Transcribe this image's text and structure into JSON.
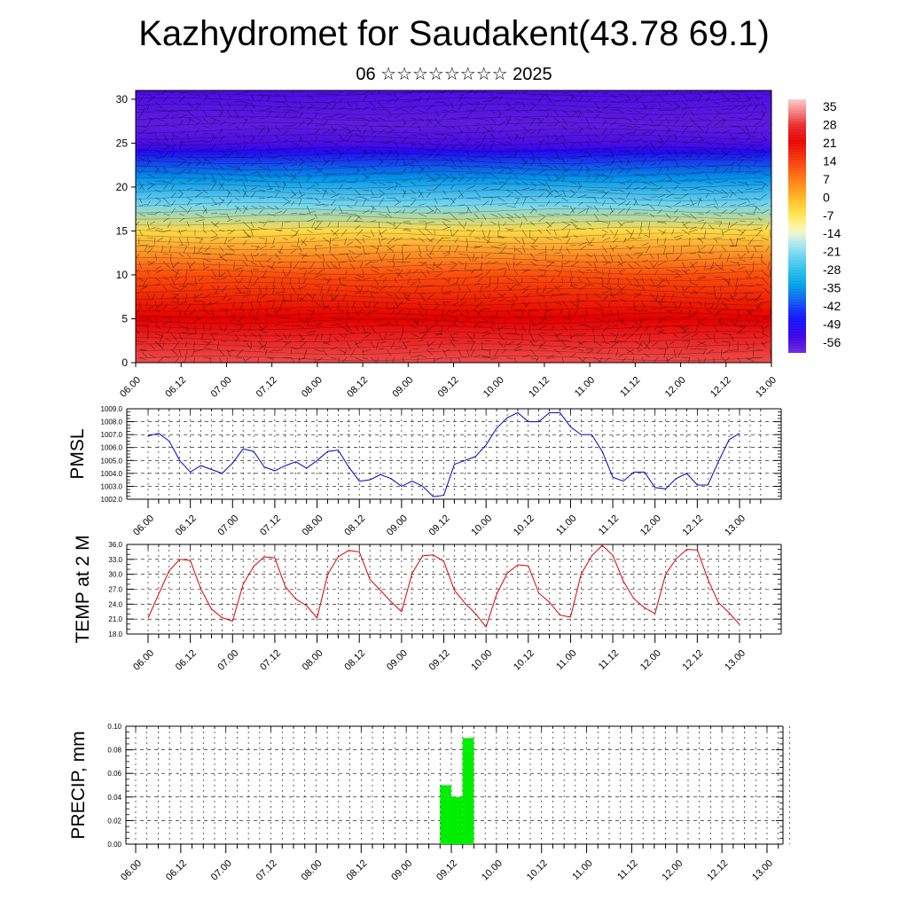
{
  "title": "Kazhydromet for Saudakent(43.78 69.1)",
  "subtitle": "06 ☆☆☆☆☆☆☆☆ 2025",
  "x_tick_labels": [
    "06.00",
    "06.12",
    "07.00",
    "07.12",
    "08.00",
    "08.12",
    "09.00",
    "09.12",
    "10.00",
    "10.12",
    "11.00",
    "11.12",
    "12.00",
    "12.12",
    "13.00"
  ],
  "colors": {
    "pmsl_line": "#0000cc",
    "temp_line": "#dd0000",
    "precip_bar": "#00ee00"
  },
  "chart_data": [
    {
      "type": "heatmap",
      "title": "",
      "ylabel": "",
      "ylim": [
        0,
        31
      ],
      "yticks": [
        "0",
        "5",
        "10",
        "15",
        "20",
        "25",
        "30"
      ],
      "colorbar_labels": [
        "35",
        "28",
        "21",
        "14",
        "7",
        "0",
        "-7",
        "-14",
        "-21",
        "-28",
        "-35",
        "-42",
        "-49",
        "-56"
      ],
      "colorbar_range": [
        -60,
        38
      ],
      "overlay": "wind vectors",
      "height_temperature_profile": {
        "heights": [
          0,
          5,
          10,
          15,
          18,
          21,
          24,
          25,
          27,
          31
        ],
        "temps": [
          30,
          22,
          12,
          -5,
          -22,
          -35,
          -50,
          -56,
          -58,
          -56
        ]
      }
    },
    {
      "type": "line",
      "ylabel": "PMSL",
      "ylim": [
        1002.0,
        1009.0
      ],
      "yticks": [
        "1002.0",
        "1003.0",
        "1004.0",
        "1005.0",
        "1006.0",
        "1007.0",
        "1008.0",
        "1009.0"
      ],
      "series": [
        {
          "x": [
            0,
            3,
            6,
            9,
            12,
            15,
            18,
            21,
            24,
            27,
            30,
            33,
            36,
            39,
            42,
            45,
            48,
            51,
            54,
            57,
            60,
            63,
            66,
            69,
            72,
            75,
            78,
            81,
            84,
            87,
            90,
            93,
            96,
            99,
            102,
            105,
            108,
            111,
            114,
            117,
            120,
            123,
            126,
            129,
            132,
            135,
            138,
            141,
            144,
            147,
            150,
            153,
            156,
            159,
            162,
            165,
            168
          ],
          "values": [
            1006.9,
            1007.1,
            1006.5,
            1005.0,
            1004.1,
            1004.6,
            1004.3,
            1004.0,
            1004.8,
            1005.9,
            1005.7,
            1004.5,
            1004.2,
            1004.6,
            1004.9,
            1004.4,
            1005.0,
            1005.7,
            1005.8,
            1004.5,
            1003.4,
            1003.5,
            1003.9,
            1003.6,
            1003.0,
            1003.4,
            1003.0,
            1002.2,
            1002.3,
            1004.7,
            1005.0,
            1005.3,
            1006.2,
            1007.5,
            1008.3,
            1008.7,
            1008.0,
            1008.0,
            1008.7,
            1008.7,
            1007.6,
            1007.0,
            1007.0,
            1005.7,
            1003.7,
            1003.4,
            1004.1,
            1004.1,
            1002.9,
            1002.8,
            1003.6,
            1004.0,
            1003.1,
            1003.1,
            1004.9,
            1006.6,
            1007.1
          ]
        }
      ]
    },
    {
      "type": "line",
      "ylabel": "TEMP at 2 M",
      "ylim": [
        18.0,
        36.0
      ],
      "yticks": [
        "18.0",
        "21.0",
        "24.0",
        "27.0",
        "30.0",
        "33.0",
        "36.0"
      ],
      "series": [
        {
          "x": [
            0,
            3,
            6,
            9,
            12,
            15,
            18,
            21,
            24,
            27,
            30,
            33,
            36,
            39,
            42,
            45,
            48,
            51,
            54,
            57,
            60,
            63,
            66,
            69,
            72,
            75,
            78,
            81,
            84,
            87,
            90,
            93,
            96,
            99,
            102,
            105,
            108,
            111,
            114,
            117,
            120,
            123,
            126,
            129,
            132,
            135,
            138,
            141,
            144,
            147,
            150,
            153,
            156,
            159,
            162,
            165,
            168
          ],
          "values": [
            21.2,
            26.0,
            30.7,
            33.0,
            32.8,
            27.0,
            23.0,
            21.3,
            20.6,
            28.0,
            31.6,
            33.5,
            33.3,
            27.5,
            25.0,
            23.7,
            21.2,
            30.0,
            33.5,
            34.8,
            34.5,
            29.0,
            26.8,
            24.5,
            22.5,
            30.2,
            33.7,
            33.9,
            32.6,
            26.8,
            24.2,
            22.1,
            19.4,
            26.0,
            30.2,
            31.9,
            31.7,
            26.2,
            24.4,
            21.8,
            21.4,
            30.0,
            33.7,
            35.8,
            33.8,
            28.6,
            25.1,
            23.3,
            22.1,
            30.0,
            33.1,
            35.0,
            34.9,
            29.0,
            24.3,
            22.3,
            19.9
          ]
        }
      ]
    },
    {
      "type": "bar",
      "ylabel": "PRECIP, mm",
      "ylim": [
        0,
        0.1
      ],
      "yticks": [
        "0.00",
        "0.02",
        "0.04",
        "0.06",
        "0.08",
        "0.10"
      ],
      "bars": [
        {
          "start_hour": 81,
          "end_hour": 84,
          "value": 0.05
        },
        {
          "start_hour": 84,
          "end_hour": 87,
          "value": 0.04
        },
        {
          "start_hour": 87,
          "end_hour": 90,
          "value": 0.09
        }
      ]
    }
  ]
}
